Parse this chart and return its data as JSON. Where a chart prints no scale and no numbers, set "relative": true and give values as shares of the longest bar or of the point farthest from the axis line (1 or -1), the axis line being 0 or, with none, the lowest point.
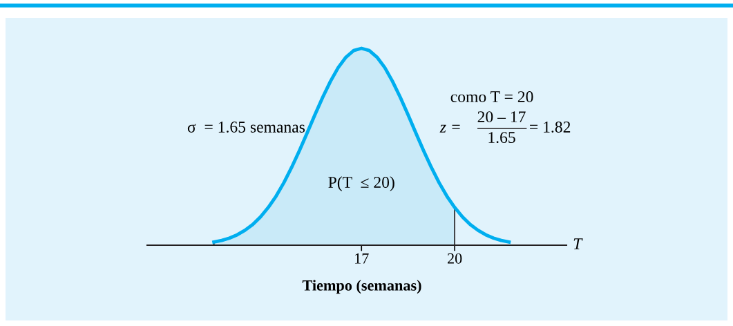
{
  "chart_data": {
    "type": "line",
    "relative": true,
    "xlabel": "Tiempo (semanas)",
    "xlim": [
      10.1,
      23.6
    ],
    "xticks": [
      17,
      20
    ],
    "tick_labels": "x",
    "grid": false,
    "legend": false,
    "marker": "none",
    "line_style": "solid",
    "annotations": [
      "σ  = 1.65 semanas",
      "como T = 20",
      "z =",
      "20 – 17",
      "1.65",
      "= 1.82",
      "P(T  ≤ 20)",
      "T"
    ],
    "series": [
      {
        "type": "area",
        "color": "#c9eaf8",
        "x": [
          12.25,
          12.5,
          12.75,
          13,
          13.25,
          13.5,
          13.75,
          14,
          14.25,
          14.5,
          14.75,
          15,
          15.25,
          15.5,
          15.75,
          16,
          16.25,
          16.5,
          16.75,
          17,
          17.25,
          17.5,
          17.75,
          18,
          18.25,
          18.5,
          18.75,
          19,
          19.25,
          19.5,
          19.75,
          20
        ],
        "values": [
          0.016,
          0.024,
          0.036,
          0.053,
          0.076,
          0.105,
          0.144,
          0.192,
          0.249,
          0.317,
          0.395,
          0.48,
          0.57,
          0.662,
          0.751,
          0.832,
          0.902,
          0.955,
          0.989,
          1,
          0.989,
          0.955,
          0.902,
          0.832,
          0.751,
          0.662,
          0.57,
          0.48,
          0.395,
          0.317,
          0.249,
          0.192
        ]
      },
      {
        "color": "#00aeef",
        "x": [
          12.25,
          12.5,
          12.75,
          13,
          13.25,
          13.5,
          13.75,
          14,
          14.25,
          14.5,
          14.75,
          15,
          15.25,
          15.5,
          15.75,
          16,
          16.25,
          16.5,
          16.75,
          17,
          17.25,
          17.5,
          17.75,
          18,
          18.25,
          18.5,
          18.75,
          19,
          19.25,
          19.5,
          19.75,
          20,
          20.25,
          20.5,
          20.75,
          21,
          21.25,
          21.5,
          21.75
        ],
        "values": [
          0.016,
          0.024,
          0.036,
          0.053,
          0.076,
          0.105,
          0.144,
          0.192,
          0.249,
          0.317,
          0.395,
          0.48,
          0.57,
          0.662,
          0.751,
          0.832,
          0.902,
          0.955,
          0.989,
          1,
          0.989,
          0.955,
          0.902,
          0.832,
          0.751,
          0.662,
          0.57,
          0.48,
          0.395,
          0.317,
          0.249,
          0.192,
          0.144,
          0.105,
          0.076,
          0.053,
          0.036,
          0.024,
          0.016
        ]
      }
    ]
  }
}
